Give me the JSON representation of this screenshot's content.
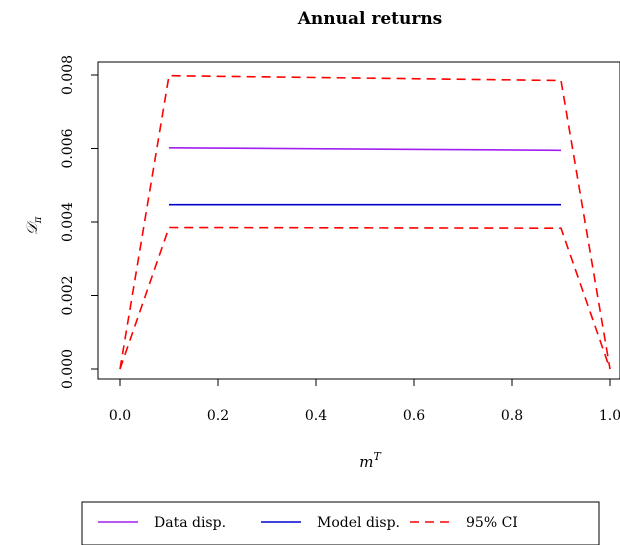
{
  "chart_data": {
    "type": "line",
    "title": "Annual returns",
    "xlabel": "m^T",
    "xlabel_base": "m",
    "xlabel_sup": "T",
    "ylabel": "D_π",
    "ylabel_base": "𝒟",
    "ylabel_sub": "π",
    "xlim": [
      0.0,
      1.0
    ],
    "ylim": [
      0.0,
      0.008
    ],
    "x_ticks": [
      0.0,
      0.2,
      0.4,
      0.6,
      0.8,
      1.0
    ],
    "x_tick_labels": [
      "0.0",
      "0.2",
      "0.4",
      "0.6",
      "0.8",
      "1.0"
    ],
    "y_ticks": [
      0.0,
      0.002,
      0.004,
      0.006,
      0.008
    ],
    "y_tick_labels": [
      "0.000",
      "0.002",
      "0.004",
      "0.006",
      "0.008"
    ],
    "grid": false,
    "legend_position": "bottom",
    "series": [
      {
        "name": "Data disp.",
        "color": "#a020f0",
        "dash": "solid",
        "x": [
          0.1,
          0.9
        ],
        "values": [
          0.00602,
          0.00595
        ]
      },
      {
        "name": "Model disp.",
        "color": "#0000cd",
        "dash": "solid",
        "x": [
          0.1,
          0.9
        ],
        "values": [
          0.00447,
          0.00447
        ]
      },
      {
        "name": "95% CI",
        "color": "#ff0000",
        "dash": "dashed",
        "x": [
          0.0,
          0.1,
          0.9,
          1.0
        ],
        "values": [
          0.0,
          0.00798,
          0.00785,
          0.0
        ]
      },
      {
        "name": "",
        "color": "#ff0000",
        "dash": "dashed",
        "x": [
          0.0,
          0.1,
          0.9,
          1.0
        ],
        "values": [
          0.0,
          0.00385,
          0.00383,
          0.0
        ]
      }
    ]
  }
}
